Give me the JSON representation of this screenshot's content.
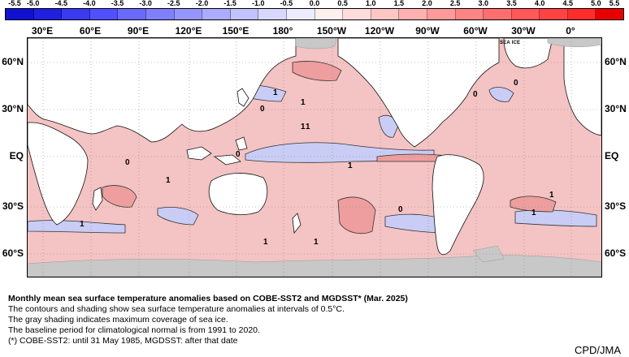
{
  "colorbar": {
    "ticks": [
      "-5.5",
      "-5.0",
      "-4.5",
      "-4.0",
      "-3.5",
      "-3.0",
      "-2.5",
      "-2.0",
      "-1.5",
      "-1.0",
      "-0.5",
      "0.0",
      "0.5",
      "1.0",
      "1.5",
      "2.0",
      "2.5",
      "3.0",
      "3.5",
      "4.0",
      "4.5",
      "5.0",
      "5.5"
    ],
    "colors": [
      "#1010d0",
      "#2020e0",
      "#3a3af0",
      "#5050ff",
      "#6a6aff",
      "#8080ff",
      "#9696ff",
      "#acacff",
      "#c2c2ff",
      "#d8d8ff",
      "#ececff",
      "#fff0f0",
      "#ffdcdc",
      "#ffc6c6",
      "#ffb0b0",
      "#ff9a9a",
      "#ff8484",
      "#ff6e6e",
      "#ff5858",
      "#ff4242",
      "#ff2c2c",
      "#e80000"
    ]
  },
  "lon_labels": [
    "30°E",
    "60°E",
    "90°E",
    "120°E",
    "150°E",
    "180°",
    "150°W",
    "120°W",
    "90°W",
    "60°W",
    "30°W",
    "0°"
  ],
  "lat_labels": [
    "60°N",
    "30°N",
    "EQ",
    "30°S",
    "60°S"
  ],
  "map": {
    "sea_ice_label": "SEA ICE",
    "contour_labels": [
      "0",
      "1",
      "1",
      "0",
      "1",
      "0",
      "0",
      "1",
      "1",
      "1",
      "1",
      "0",
      "1",
      "1",
      "1",
      "1",
      "0"
    ],
    "colors": {
      "land": "#ffffff",
      "sea_ice": "#c8c8c8",
      "warm": "#f4c3c3",
      "cool": "#c9cdf5"
    }
  },
  "caption": {
    "title": "Monthly mean sea surface temperature anomalies based on COBE-SST2 and MGDSST* (Mar. 2025)",
    "lines": [
      "The contours and shading show sea surface temperature anomalies at intervals of 0.5°C.",
      "The gray shading indicates maximum coverage of sea ice.",
      "The baseline period for climatological normal is from 1991 to 2020.",
      "(*) COBE-SST2: until 31 May 1985, MGDSST: after that date"
    ]
  },
  "credit": "CPD/JMA"
}
